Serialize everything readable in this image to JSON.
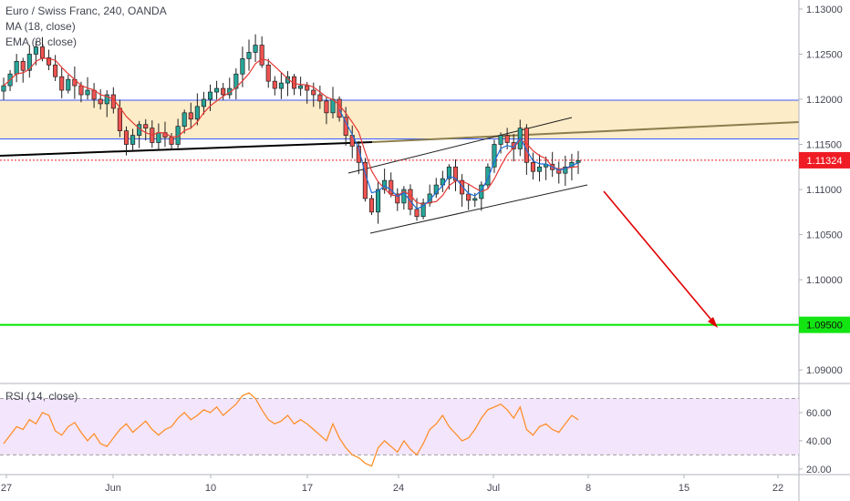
{
  "legend": {
    "symbol": "Euro / Swiss Franc, 240, OANDA",
    "ma": "MA (18, close)",
    "ema": "EMA (8, close)",
    "rsi": "RSI (14, close)"
  },
  "colors": {
    "candle_up": "#26a69a",
    "candle_down": "#ef5350",
    "candle_body": "#1f1f1f",
    "ma_line": "#e53935",
    "ema_line": "#1e6fd9",
    "rsi_line": "#ff8a1e",
    "rsi_band": "#f3e5fb",
    "zone_fill": "#fdecc8",
    "zone_border": "#3d5afe",
    "support_line": "#000000",
    "trend_line": "#8b7e4e",
    "channel_line": "#1f1f1f",
    "target_line": "#00e600",
    "arrow": "#e00000",
    "price_tag_red": "#ef1c24",
    "price_tag_green": "#13e513"
  },
  "chart_data": [
    {
      "type": "candlestick",
      "title": "Euro / Swiss Franc, 240, OANDA",
      "x_ticks": [
        "27",
        "Jun",
        "10",
        "17",
        "24",
        "Jul",
        "8",
        "15",
        "22"
      ],
      "y_ticks": [
        "1.13000",
        "1.12500",
        "1.12000",
        "1.11500",
        "1.11000",
        "1.10500",
        "1.10000",
        "1.09500",
        "1.09000"
      ],
      "ylim": [
        1.0885,
        1.131
      ],
      "current_price": "1.11324",
      "target_price": "1.09500",
      "resistance_zone": [
        1.1156,
        1.1199
      ],
      "ma_label": "MA (18, close)",
      "ema_label": "EMA (8, close)",
      "ohlc_close_path": [
        1.1215,
        1.1228,
        1.1242,
        1.1232,
        1.125,
        1.1258,
        1.1246,
        1.1238,
        1.1225,
        1.121,
        1.1222,
        1.1215,
        1.1205,
        1.121,
        1.12,
        1.1195,
        1.1205,
        1.119,
        1.1165,
        1.115,
        1.116,
        1.1172,
        1.1168,
        1.1152,
        1.1163,
        1.1158,
        1.115,
        1.117,
        1.1185,
        1.1178,
        1.1192,
        1.12,
        1.1208,
        1.1212,
        1.1205,
        1.1212,
        1.1228,
        1.1245,
        1.1252,
        1.126,
        1.1238,
        1.122,
        1.1212,
        1.1218,
        1.1225,
        1.1212,
        1.1215,
        1.121,
        1.1205,
        1.1198,
        1.1185,
        1.12,
        1.118,
        1.116,
        1.1148,
        1.113,
        1.109,
        1.1075,
        1.11,
        1.111,
        1.1095,
        1.1085,
        1.11,
        1.1078,
        1.107,
        1.1085,
        1.1095,
        1.1105,
        1.1112,
        1.1125,
        1.111,
        1.1095,
        1.1088,
        1.109,
        1.1105,
        1.1125,
        1.115,
        1.116,
        1.1152,
        1.1145,
        1.1168,
        1.113,
        1.112,
        1.1125,
        1.1128,
        1.1122,
        1.1118,
        1.1125,
        1.113,
        1.1132
      ],
      "rsi": {
        "title": "RSI (14, close)",
        "y_ticks": [
          "60.00",
          "40.00",
          "20.00"
        ],
        "ylim": [
          16,
          80
        ],
        "band": [
          30,
          70
        ],
        "values": [
          38,
          44,
          50,
          48,
          55,
          52,
          60,
          58,
          47,
          44,
          50,
          53,
          46,
          40,
          45,
          38,
          36,
          42,
          48,
          52,
          46,
          50,
          54,
          48,
          44,
          48,
          50,
          56,
          60,
          55,
          58,
          62,
          60,
          64,
          58,
          62,
          66,
          72,
          74,
          70,
          62,
          55,
          52,
          54,
          58,
          52,
          55,
          52,
          48,
          44,
          40,
          52,
          42,
          35,
          30,
          28,
          24,
          22,
          35,
          40,
          36,
          32,
          40,
          34,
          30,
          38,
          48,
          52,
          58,
          50,
          45,
          40,
          42,
          48,
          56,
          62,
          64,
          66,
          62,
          56,
          64,
          48,
          44,
          50,
          52,
          48,
          46,
          52,
          58,
          55
        ]
      }
    }
  ]
}
